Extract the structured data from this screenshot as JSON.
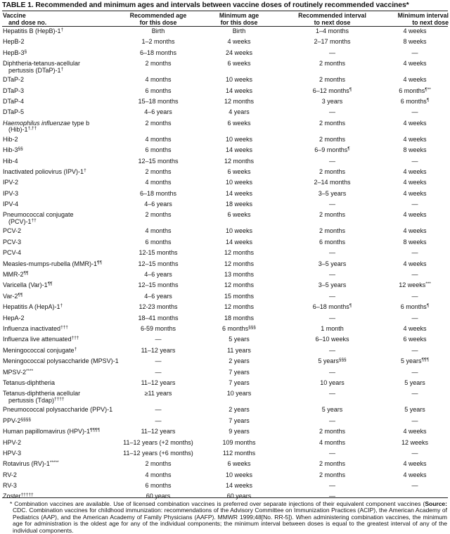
{
  "title": "TABLE 1. Recommended and minimum ages and intervals between vaccine doses of routinely recommended vaccines*",
  "headers": [
    {
      "l1": "Vaccine",
      "l2": "and dose no."
    },
    {
      "l1": "Recommended age",
      "l2": "for this dose"
    },
    {
      "l1": "Minimum age",
      "l2": "for this dose"
    },
    {
      "l1": "Recommended interval",
      "l2": "to next dose"
    },
    {
      "l1": "Minimum interval",
      "l2": "to next dose"
    }
  ],
  "rows": [
    {
      "name": "Hepatitis B (HepB)-1",
      "ns": "†",
      "c": [
        {
          "t": "Birth"
        },
        {
          "t": "Birth"
        },
        {
          "t": "1–4 months"
        },
        {
          "t": "4 weeks"
        }
      ]
    },
    {
      "name": "HepB-2",
      "c": [
        {
          "t": "1–2 months"
        },
        {
          "t": "4 weeks"
        },
        {
          "t": "2–17 months"
        },
        {
          "t": "8 weeks"
        }
      ]
    },
    {
      "name": "HepB-3",
      "ns": "§",
      "c": [
        {
          "t": "6–18 months"
        },
        {
          "t": "24 weeks"
        },
        {
          "t": "—"
        },
        {
          "t": "—"
        }
      ]
    },
    {
      "name": "Diphtheria-tetanus-acellular",
      "name2": "pertussis (DTaP)-1",
      "ns": "†",
      "c": [
        {
          "t": "2 months"
        },
        {
          "t": "6 weeks"
        },
        {
          "t": "2 months"
        },
        {
          "t": "4 weeks"
        }
      ]
    },
    {
      "name": "DTaP-2",
      "c": [
        {
          "t": "4 months"
        },
        {
          "t": "10 weeks"
        },
        {
          "t": "2 months"
        },
        {
          "t": "4 weeks"
        }
      ]
    },
    {
      "name": "DTaP-3",
      "c": [
        {
          "t": "6 months"
        },
        {
          "t": "14 weeks"
        },
        {
          "t": "6–12 months",
          "s": "¶"
        },
        {
          "t": "6 months",
          "s": "¶**"
        }
      ]
    },
    {
      "name": "DTaP-4",
      "c": [
        {
          "t": "15–18 months"
        },
        {
          "t": "12 months"
        },
        {
          "t": "3 years"
        },
        {
          "t": "6 months",
          "s": "¶"
        }
      ]
    },
    {
      "name": "DTaP-5",
      "c": [
        {
          "t": "4–6 years"
        },
        {
          "t": "4 years"
        },
        {
          "t": "—"
        },
        {
          "t": "—"
        }
      ]
    },
    {
      "name_italic": "Haemophilus influenzae",
      "name": " type b",
      "name2": "(Hib)-1",
      "ns": "†,††",
      "c": [
        {
          "t": "2 months"
        },
        {
          "t": "6 weeks"
        },
        {
          "t": "2 months"
        },
        {
          "t": "4 weeks"
        }
      ]
    },
    {
      "name": "Hib-2",
      "c": [
        {
          "t": "4 months"
        },
        {
          "t": "10 weeks"
        },
        {
          "t": "2 months"
        },
        {
          "t": "4 weeks"
        }
      ]
    },
    {
      "name": "Hib-3",
      "ns": "§§",
      "c": [
        {
          "t": "6 months"
        },
        {
          "t": "14 weeks"
        },
        {
          "t": "6–9 months",
          "s": "¶"
        },
        {
          "t": "8 weeks"
        }
      ]
    },
    {
      "name": "Hib-4",
      "c": [
        {
          "t": "12–15 months"
        },
        {
          "t": "12 months"
        },
        {
          "t": "—"
        },
        {
          "t": "—"
        }
      ]
    },
    {
      "name": "Inactivated poliovirus (IPV)-1",
      "ns": "†",
      "c": [
        {
          "t": "2 months"
        },
        {
          "t": "6 weeks"
        },
        {
          "t": "2 months"
        },
        {
          "t": "4 weeks"
        }
      ]
    },
    {
      "name": "IPV-2",
      "c": [
        {
          "t": "4 months"
        },
        {
          "t": "10 weeks"
        },
        {
          "t": "2–14 months"
        },
        {
          "t": "4 weeks"
        }
      ]
    },
    {
      "name": "IPV-3",
      "c": [
        {
          "t": "6–18 months"
        },
        {
          "t": "14 weeks"
        },
        {
          "t": "3–5 years"
        },
        {
          "t": "4 weeks"
        }
      ]
    },
    {
      "name": "IPV-4",
      "c": [
        {
          "t": "4–6 years"
        },
        {
          "t": "18 weeks"
        },
        {
          "t": "—"
        },
        {
          "t": "—"
        }
      ]
    },
    {
      "name": "Pneumococcal conjugate",
      "name2": "(PCV)-1",
      "ns": "††",
      "c": [
        {
          "t": "2 months"
        },
        {
          "t": "6 weeks"
        },
        {
          "t": "2 months"
        },
        {
          "t": "4 weeks"
        }
      ]
    },
    {
      "name": "PCV-2",
      "c": [
        {
          "t": "4 months"
        },
        {
          "t": "10 weeks"
        },
        {
          "t": "2 months"
        },
        {
          "t": "4 weeks"
        }
      ]
    },
    {
      "name": "PCV-3",
      "c": [
        {
          "t": "6 months"
        },
        {
          "t": "14 weeks"
        },
        {
          "t": "6 months"
        },
        {
          "t": "8 weeks"
        }
      ]
    },
    {
      "name": "PCV-4",
      "c": [
        {
          "t": "12-15 months"
        },
        {
          "t": "12 months"
        },
        {
          "t": "—"
        },
        {
          "t": "—"
        }
      ]
    },
    {
      "name": "Measles-mumps-rubella (MMR)-1",
      "ns": "¶¶",
      "c": [
        {
          "t": "12–15 months"
        },
        {
          "t": "12 months"
        },
        {
          "t": "3–5 years"
        },
        {
          "t": "4 weeks"
        }
      ]
    },
    {
      "name": "MMR-2",
      "ns": "¶¶",
      "c": [
        {
          "t": "4–6 years"
        },
        {
          "t": "13 months"
        },
        {
          "t": "—"
        },
        {
          "t": "—"
        }
      ]
    },
    {
      "name": "Varicella (Var)-1",
      "ns": "¶¶",
      "c": [
        {
          "t": "12–15 months"
        },
        {
          "t": "12 months"
        },
        {
          "t": "3–5 years"
        },
        {
          "t": "12 weeks",
          "s": "***"
        }
      ]
    },
    {
      "name": "Var-2",
      "ns": "¶¶",
      "c": [
        {
          "t": "4–6 years"
        },
        {
          "t": "15 months"
        },
        {
          "t": "—"
        },
        {
          "t": "—"
        }
      ]
    },
    {
      "name": "Hepatitis A (HepA)-1",
      "ns": "†",
      "c": [
        {
          "t": "12-23 months"
        },
        {
          "t": "12 months"
        },
        {
          "t": "6–18 months",
          "s": "¶"
        },
        {
          "t": "6 months",
          "s": "¶"
        }
      ]
    },
    {
      "name": "HepA-2",
      "c": [
        {
          "t": "18–41 months"
        },
        {
          "t": "18 months"
        },
        {
          "t": "—"
        },
        {
          "t": "—"
        }
      ]
    },
    {
      "name": "Influenza inactivated",
      "ns": "†††",
      "c": [
        {
          "t": "6-59 months"
        },
        {
          "t": "6 months",
          "s": "§§§"
        },
        {
          "t": "1 month"
        },
        {
          "t": "4 weeks"
        }
      ]
    },
    {
      "name": "Influenza live attenuated",
      "ns": "†††",
      "c": [
        {
          "t": "—"
        },
        {
          "t": "5 years"
        },
        {
          "t": "6–10 weeks"
        },
        {
          "t": "6 weeks"
        }
      ]
    },
    {
      "name": "Meningococcal conjugate",
      "ns": "†",
      "c": [
        {
          "t": "11–12 years"
        },
        {
          "t": "11 years"
        },
        {
          "t": "—"
        },
        {
          "t": "—"
        }
      ]
    },
    {
      "name": "Meningococcal polysaccharide (MPSV)-1",
      "c": [
        {
          "t": "—"
        },
        {
          "t": "2 years"
        },
        {
          "t": "5 years",
          "s": "§§§"
        },
        {
          "t": "5 years",
          "s": "¶¶¶"
        }
      ]
    },
    {
      "name": "MPSV-2",
      "ns": "****",
      "c": [
        {
          "t": "—"
        },
        {
          "t": "7 years"
        },
        {
          "t": "—"
        },
        {
          "t": "—"
        }
      ]
    },
    {
      "name": "Tetanus-diphtheria",
      "c": [
        {
          "t": "11–12 years"
        },
        {
          "t": "7 years"
        },
        {
          "t": "10 years"
        },
        {
          "t": "5 years"
        }
      ]
    },
    {
      "name": "Tetanus-diphtheria acellular",
      "name2": "pertussis (Tdap)",
      "ns": "††††",
      "c": [
        {
          "t": "≥11 years"
        },
        {
          "t": "10 years"
        },
        {
          "t": "—"
        },
        {
          "t": "—"
        }
      ]
    },
    {
      "name": "Pneumococcal polysaccharide (PPV)-1",
      "c": [
        {
          "t": "—"
        },
        {
          "t": "2 years"
        },
        {
          "t": "5 years"
        },
        {
          "t": "5 years"
        }
      ]
    },
    {
      "name": "PPV-2",
      "ns": "§§§§",
      "c": [
        {
          "t": "—"
        },
        {
          "t": "7 years"
        },
        {
          "t": "—"
        },
        {
          "t": "—"
        }
      ]
    },
    {
      "name": "Human papillomavirus (HPV)-1",
      "ns": "¶¶¶¶",
      "c": [
        {
          "t": "11–12 years"
        },
        {
          "t": "9 years"
        },
        {
          "t": "2 months"
        },
        {
          "t": "4 weeks"
        }
      ]
    },
    {
      "name": "HPV-2",
      "c": [
        {
          "t": "11–12 years (+2 months)"
        },
        {
          "t": "109 months"
        },
        {
          "t": "4 months"
        },
        {
          "t": "12 weeks"
        }
      ]
    },
    {
      "name": "HPV-3",
      "c": [
        {
          "t": "11–12 years (+6 months)"
        },
        {
          "t": "112 months"
        },
        {
          "t": "—"
        },
        {
          "t": "—"
        }
      ]
    },
    {
      "name": "Rotavirus (RV)-1",
      "ns": "*****",
      "c": [
        {
          "t": "2 months"
        },
        {
          "t": "6 weeks"
        },
        {
          "t": "2 months"
        },
        {
          "t": "4 weeks"
        }
      ]
    },
    {
      "name": "RV-2",
      "c": [
        {
          "t": "4 months"
        },
        {
          "t": "10 weeks"
        },
        {
          "t": "2 months"
        },
        {
          "t": "4 weeks"
        }
      ]
    },
    {
      "name": "RV-3",
      "c": [
        {
          "t": "6 months"
        },
        {
          "t": "14 weeks"
        },
        {
          "t": "—"
        },
        {
          "t": "—"
        }
      ]
    },
    {
      "name": "Zoster",
      "ns": "†††††",
      "c": [
        {
          "t": "60 years"
        },
        {
          "t": "60 years"
        },
        {
          "t": "—"
        },
        {
          "t": ""
        }
      ]
    }
  ],
  "footnote": {
    "pre": "* Combination vaccines are available. Use of licensed combination vaccines is preferred over separate injections of their equivalent component vaccines (",
    "bold": "Source:",
    "post": " CDC. Combination vaccines for childhood immunization: recommendations of the Advisory Committee on Immunization Practices (ACIP), the American Academy of Pediatrics (AAP), and the American Academy of Family Physicians (AAFP). MMWR 1999;48[No. RR-5]). When administering combination vaccines, the minimum age for administration is the oldest age for any of the individual components; the minimum interval between doses is equal to the greatest interval of any of the individual components."
  }
}
